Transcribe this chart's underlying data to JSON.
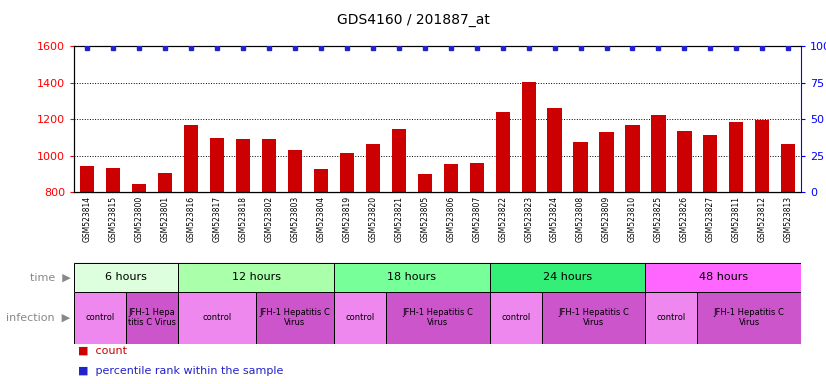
{
  "title": "GDS4160 / 201887_at",
  "samples": [
    "GSM523814",
    "GSM523815",
    "GSM523800",
    "GSM523801",
    "GSM523816",
    "GSM523817",
    "GSM523818",
    "GSM523802",
    "GSM523803",
    "GSM523804",
    "GSM523819",
    "GSM523820",
    "GSM523821",
    "GSM523805",
    "GSM523806",
    "GSM523807",
    "GSM523822",
    "GSM523823",
    "GSM523824",
    "GSM523808",
    "GSM523809",
    "GSM523810",
    "GSM523825",
    "GSM523826",
    "GSM523827",
    "GSM523811",
    "GSM523812",
    "GSM523813"
  ],
  "counts": [
    940,
    930,
    845,
    905,
    1165,
    1095,
    1090,
    1090,
    1030,
    925,
    1015,
    1065,
    1145,
    900,
    955,
    960,
    1240,
    1405,
    1260,
    1075,
    1130,
    1165,
    1220,
    1135,
    1110,
    1185,
    1195,
    1065
  ],
  "percentile": [
    99,
    99,
    99,
    99,
    99,
    99,
    99,
    99,
    99,
    99,
    99,
    99,
    99,
    99,
    99,
    99,
    99,
    99,
    99,
    99,
    99,
    99,
    99,
    99,
    99,
    99,
    99,
    99
  ],
  "ylim_left": [
    800,
    1600
  ],
  "ylim_right": [
    0,
    100
  ],
  "yticks_left": [
    800,
    1000,
    1200,
    1400,
    1600
  ],
  "yticks_right": [
    0,
    25,
    50,
    75,
    100
  ],
  "bar_color": "#cc0000",
  "dot_color": "#2222cc",
  "time_groups": [
    {
      "label": "6 hours",
      "start": 0,
      "end": 4,
      "color": "#ddffdd"
    },
    {
      "label": "12 hours",
      "start": 4,
      "end": 10,
      "color": "#aaffaa"
    },
    {
      "label": "18 hours",
      "start": 10,
      "end": 16,
      "color": "#77ff99"
    },
    {
      "label": "24 hours",
      "start": 16,
      "end": 22,
      "color": "#33ee77"
    },
    {
      "label": "48 hours",
      "start": 22,
      "end": 28,
      "color": "#ff66ff"
    }
  ],
  "infection_groups": [
    {
      "label": "control",
      "start": 0,
      "end": 2,
      "color": "#ee88ee"
    },
    {
      "label": "JFH-1 Hepa\ntitis C Virus",
      "start": 2,
      "end": 4,
      "color": "#cc55cc"
    },
    {
      "label": "control",
      "start": 4,
      "end": 7,
      "color": "#ee88ee"
    },
    {
      "label": "JFH-1 Hepatitis C\nVirus",
      "start": 7,
      "end": 10,
      "color": "#cc55cc"
    },
    {
      "label": "control",
      "start": 10,
      "end": 12,
      "color": "#ee88ee"
    },
    {
      "label": "JFH-1 Hepatitis C\nVirus",
      "start": 12,
      "end": 16,
      "color": "#cc55cc"
    },
    {
      "label": "control",
      "start": 16,
      "end": 18,
      "color": "#ee88ee"
    },
    {
      "label": "JFH-1 Hepatitis C\nVirus",
      "start": 18,
      "end": 22,
      "color": "#cc55cc"
    },
    {
      "label": "control",
      "start": 22,
      "end": 24,
      "color": "#ee88ee"
    },
    {
      "label": "JFH-1 Hepatitis C\nVirus",
      "start": 24,
      "end": 28,
      "color": "#cc55cc"
    }
  ]
}
